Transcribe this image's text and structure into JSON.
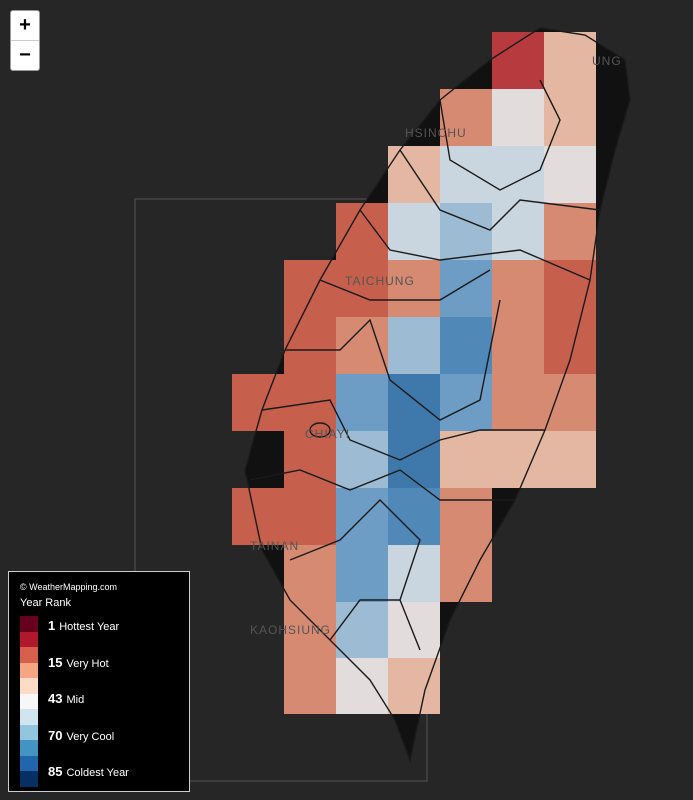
{
  "zoom": {
    "in": "+",
    "out": "−"
  },
  "cities": [
    "UNG",
    "HSINCHU",
    "TAICHUNG",
    "CHIAYI",
    "TAINAN",
    "KAOHSIUNG"
  ],
  "legend": {
    "credit": "© WeatherMapping.com",
    "title": "Year Rank",
    "entries": [
      {
        "rank": 1,
        "label": "Hottest Year"
      },
      {
        "rank": 15,
        "label": "Very Hot"
      },
      {
        "rank": 43,
        "label": "Mid"
      },
      {
        "rank": 70,
        "label": "Very Cool"
      },
      {
        "rank": 85,
        "label": "Coldest Year"
      }
    ]
  }
}
